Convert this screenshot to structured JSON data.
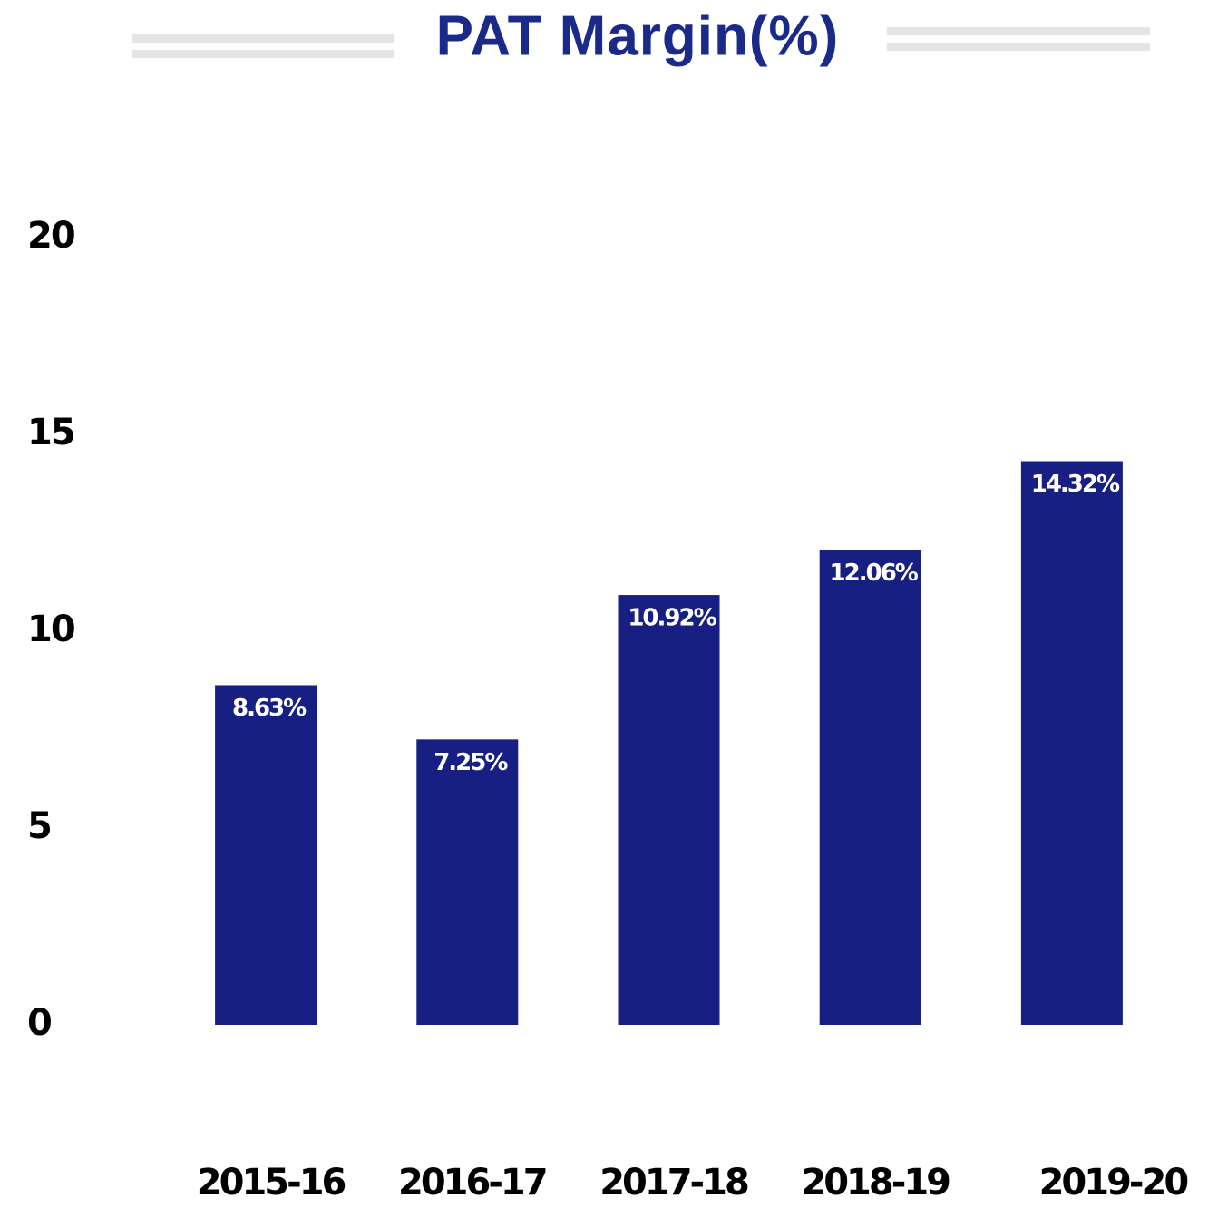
{
  "chart_data": {
    "type": "bar",
    "title": "PAT Margin(%)",
    "categories": [
      "2015-16",
      "2016-17",
      "2017-18",
      "2018-19",
      "2019-20"
    ],
    "values": [
      8.63,
      7.25,
      10.92,
      12.06,
      14.32
    ],
    "value_labels": [
      "8.63%",
      "7.25%",
      "10.92%",
      "12.06%",
      "14.32%"
    ],
    "color": "#171f83",
    "ylim": [
      0,
      20
    ],
    "yticks": [
      0,
      5,
      10,
      15,
      20
    ],
    "grid": false
  }
}
